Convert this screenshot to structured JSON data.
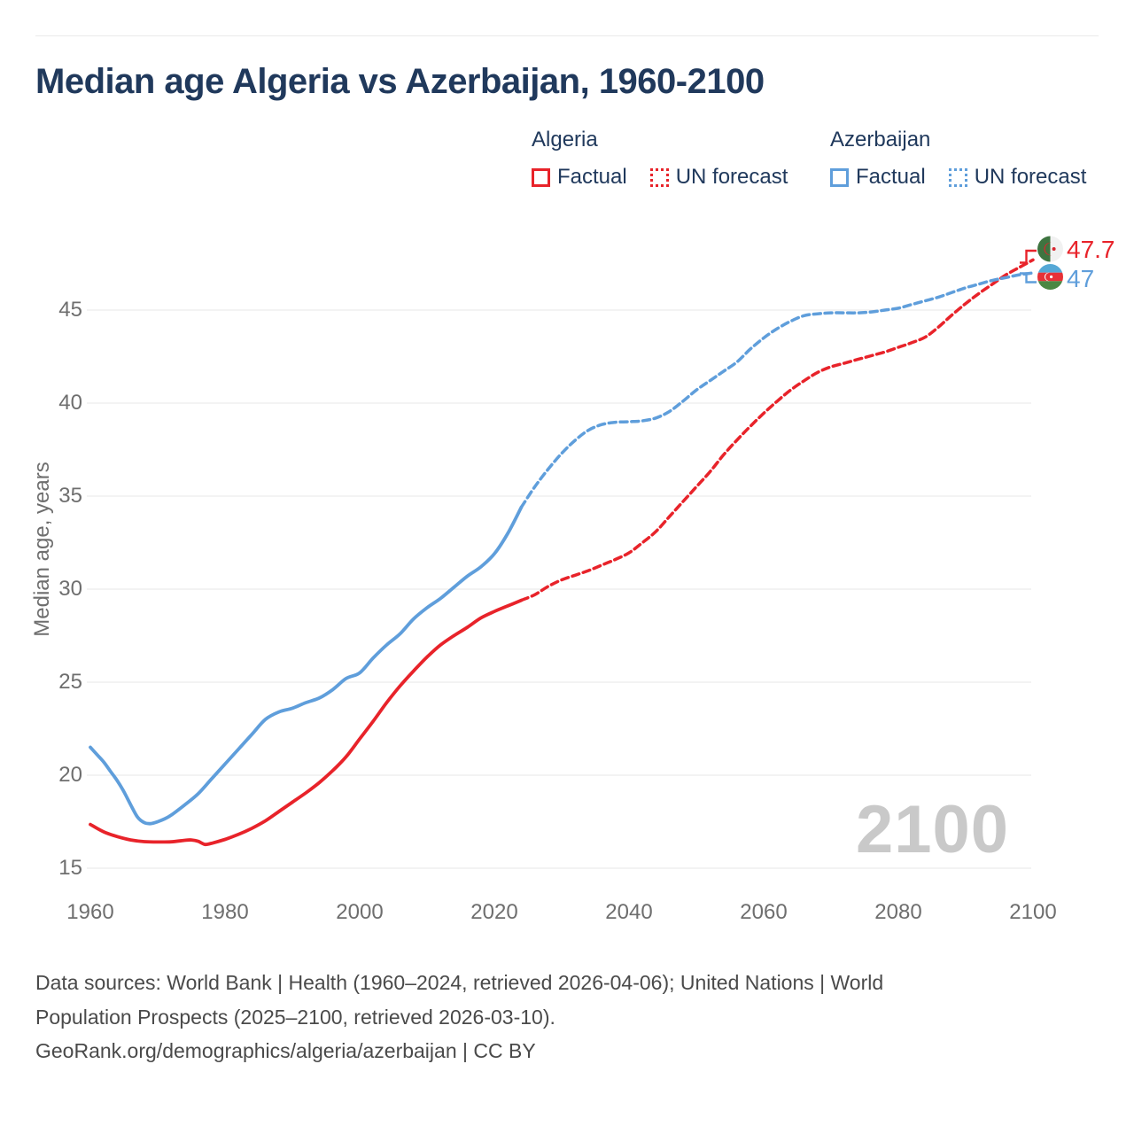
{
  "title": "Median age Algeria vs Azerbaijan, 1960-2100",
  "watermark": "2100",
  "colors": {
    "algeria": "#e8232a",
    "azerbaijan": "#5f9edb",
    "title_text": "#20395c",
    "axis_text": "#6e6e6e",
    "gridline": "#e7e7e7",
    "watermark_text": "#c9c9c9",
    "footer_text": "#4a4a4a",
    "algeria_flag_green": "#3e7440",
    "azerbaijan_flag_blue": "#55a8d6",
    "azerbaijan_flag_red": "#e73137",
    "azerbaijan_flag_green": "#4b8742"
  },
  "legend": {
    "groups": [
      {
        "country": "Algeria",
        "factual_label": "Factual",
        "forecast_label": "UN forecast"
      },
      {
        "country": "Azerbaijan",
        "factual_label": "Factual",
        "forecast_label": "UN forecast"
      }
    ]
  },
  "y_axis": {
    "title": "Median age, years",
    "ticks": [
      45,
      40,
      35,
      30,
      25,
      20,
      15
    ]
  },
  "x_axis": {
    "ticks": [
      1960,
      1980,
      2000,
      2020,
      2040,
      2060,
      2080,
      2100
    ]
  },
  "end_labels": {
    "algeria": "47.7",
    "azerbaijan": "47"
  },
  "footer": {
    "lines": [
      "Data sources: World Bank | Health (1960–2024, retrieved 2026-04-06); United Nations | World",
      "Population Prospects (2025–2100, retrieved 2026-03-10).",
      "GeoRank.org/demographics/algeria/azerbaijan | CC BY"
    ]
  },
  "chart_data": {
    "type": "line",
    "title": "Median age Algeria vs Azerbaijan, 1960-2100",
    "xlabel": "",
    "ylabel": "Median age, years",
    "xlim": [
      1960,
      2100
    ],
    "ylim": [
      15,
      48
    ],
    "grid": true,
    "legend_position": "top",
    "series": [
      {
        "name": "Algeria factual",
        "style": "solid",
        "color_key": "algeria",
        "points": [
          [
            1960,
            17.35
          ],
          [
            1962,
            16.95
          ],
          [
            1964,
            16.7
          ],
          [
            1966,
            16.52
          ],
          [
            1968,
            16.43
          ],
          [
            1970,
            16.41
          ],
          [
            1972,
            16.42
          ],
          [
            1974,
            16.5
          ],
          [
            1975,
            16.52
          ],
          [
            1976,
            16.45
          ],
          [
            1977,
            16.28
          ],
          [
            1978,
            16.34
          ],
          [
            1980,
            16.55
          ],
          [
            1982,
            16.82
          ],
          [
            1984,
            17.15
          ],
          [
            1986,
            17.55
          ],
          [
            1988,
            18.05
          ],
          [
            1990,
            18.55
          ],
          [
            1992,
            19.05
          ],
          [
            1994,
            19.6
          ],
          [
            1996,
            20.25
          ],
          [
            1998,
            21.0
          ],
          [
            2000,
            21.95
          ],
          [
            2002,
            22.9
          ],
          [
            2004,
            23.9
          ],
          [
            2006,
            24.8
          ],
          [
            2008,
            25.6
          ],
          [
            2010,
            26.35
          ],
          [
            2012,
            27.0
          ],
          [
            2014,
            27.5
          ],
          [
            2016,
            27.95
          ],
          [
            2018,
            28.45
          ],
          [
            2020,
            28.8
          ],
          [
            2022,
            29.1
          ],
          [
            2024,
            29.4
          ]
        ]
      },
      {
        "name": "Algeria UN forecast",
        "style": "dashed",
        "color_key": "algeria",
        "points": [
          [
            2024,
            29.4
          ],
          [
            2026,
            29.7
          ],
          [
            2028,
            30.15
          ],
          [
            2030,
            30.5
          ],
          [
            2032,
            30.75
          ],
          [
            2034,
            31.0
          ],
          [
            2036,
            31.3
          ],
          [
            2038,
            31.6
          ],
          [
            2040,
            31.95
          ],
          [
            2042,
            32.5
          ],
          [
            2044,
            33.1
          ],
          [
            2046,
            33.9
          ],
          [
            2048,
            34.7
          ],
          [
            2050,
            35.5
          ],
          [
            2052,
            36.3
          ],
          [
            2054,
            37.2
          ],
          [
            2056,
            38.0
          ],
          [
            2058,
            38.75
          ],
          [
            2060,
            39.45
          ],
          [
            2062,
            40.1
          ],
          [
            2064,
            40.7
          ],
          [
            2066,
            41.2
          ],
          [
            2068,
            41.65
          ],
          [
            2070,
            41.95
          ],
          [
            2072,
            42.15
          ],
          [
            2074,
            42.35
          ],
          [
            2076,
            42.55
          ],
          [
            2078,
            42.75
          ],
          [
            2080,
            43.0
          ],
          [
            2082,
            43.25
          ],
          [
            2084,
            43.55
          ],
          [
            2086,
            44.1
          ],
          [
            2088,
            44.75
          ],
          [
            2090,
            45.35
          ],
          [
            2092,
            45.9
          ],
          [
            2094,
            46.4
          ],
          [
            2096,
            46.9
          ],
          [
            2098,
            47.3
          ],
          [
            2100,
            47.7
          ]
        ]
      },
      {
        "name": "Azerbaijan factual",
        "style": "solid",
        "color_key": "azerbaijan",
        "points": [
          [
            1960,
            21.5
          ],
          [
            1961,
            21.1
          ],
          [
            1962,
            20.7
          ],
          [
            1963,
            20.2
          ],
          [
            1964,
            19.7
          ],
          [
            1965,
            19.1
          ],
          [
            1966,
            18.4
          ],
          [
            1967,
            17.75
          ],
          [
            1968,
            17.45
          ],
          [
            1969,
            17.4
          ],
          [
            1970,
            17.5
          ],
          [
            1971,
            17.65
          ],
          [
            1972,
            17.85
          ],
          [
            1974,
            18.4
          ],
          [
            1976,
            19.0
          ],
          [
            1978,
            19.8
          ],
          [
            1980,
            20.6
          ],
          [
            1982,
            21.4
          ],
          [
            1984,
            22.2
          ],
          [
            1986,
            23.0
          ],
          [
            1988,
            23.4
          ],
          [
            1990,
            23.6
          ],
          [
            1992,
            23.9
          ],
          [
            1994,
            24.15
          ],
          [
            1996,
            24.6
          ],
          [
            1998,
            25.2
          ],
          [
            2000,
            25.5
          ],
          [
            2002,
            26.3
          ],
          [
            2004,
            27.0
          ],
          [
            2006,
            27.6
          ],
          [
            2008,
            28.4
          ],
          [
            2010,
            29.0
          ],
          [
            2012,
            29.5
          ],
          [
            2014,
            30.1
          ],
          [
            2016,
            30.7
          ],
          [
            2018,
            31.2
          ],
          [
            2020,
            31.9
          ],
          [
            2022,
            33.0
          ],
          [
            2024,
            34.4
          ]
        ]
      },
      {
        "name": "Azerbaijan UN forecast",
        "style": "dashed",
        "color_key": "azerbaijan",
        "points": [
          [
            2024,
            34.4
          ],
          [
            2026,
            35.5
          ],
          [
            2028,
            36.45
          ],
          [
            2030,
            37.3
          ],
          [
            2032,
            38.0
          ],
          [
            2034,
            38.55
          ],
          [
            2036,
            38.85
          ],
          [
            2038,
            38.97
          ],
          [
            2040,
            39.0
          ],
          [
            2042,
            39.05
          ],
          [
            2044,
            39.2
          ],
          [
            2046,
            39.55
          ],
          [
            2048,
            40.1
          ],
          [
            2050,
            40.7
          ],
          [
            2052,
            41.2
          ],
          [
            2054,
            41.7
          ],
          [
            2056,
            42.2
          ],
          [
            2058,
            42.9
          ],
          [
            2060,
            43.5
          ],
          [
            2062,
            44.0
          ],
          [
            2064,
            44.4
          ],
          [
            2066,
            44.7
          ],
          [
            2068,
            44.8
          ],
          [
            2070,
            44.85
          ],
          [
            2072,
            44.85
          ],
          [
            2074,
            44.85
          ],
          [
            2076,
            44.9
          ],
          [
            2078,
            45.0
          ],
          [
            2080,
            45.1
          ],
          [
            2082,
            45.3
          ],
          [
            2084,
            45.5
          ],
          [
            2086,
            45.7
          ],
          [
            2088,
            45.95
          ],
          [
            2090,
            46.2
          ],
          [
            2092,
            46.4
          ],
          [
            2094,
            46.6
          ],
          [
            2096,
            46.75
          ],
          [
            2098,
            46.9
          ],
          [
            2100,
            47.0
          ]
        ]
      }
    ]
  }
}
